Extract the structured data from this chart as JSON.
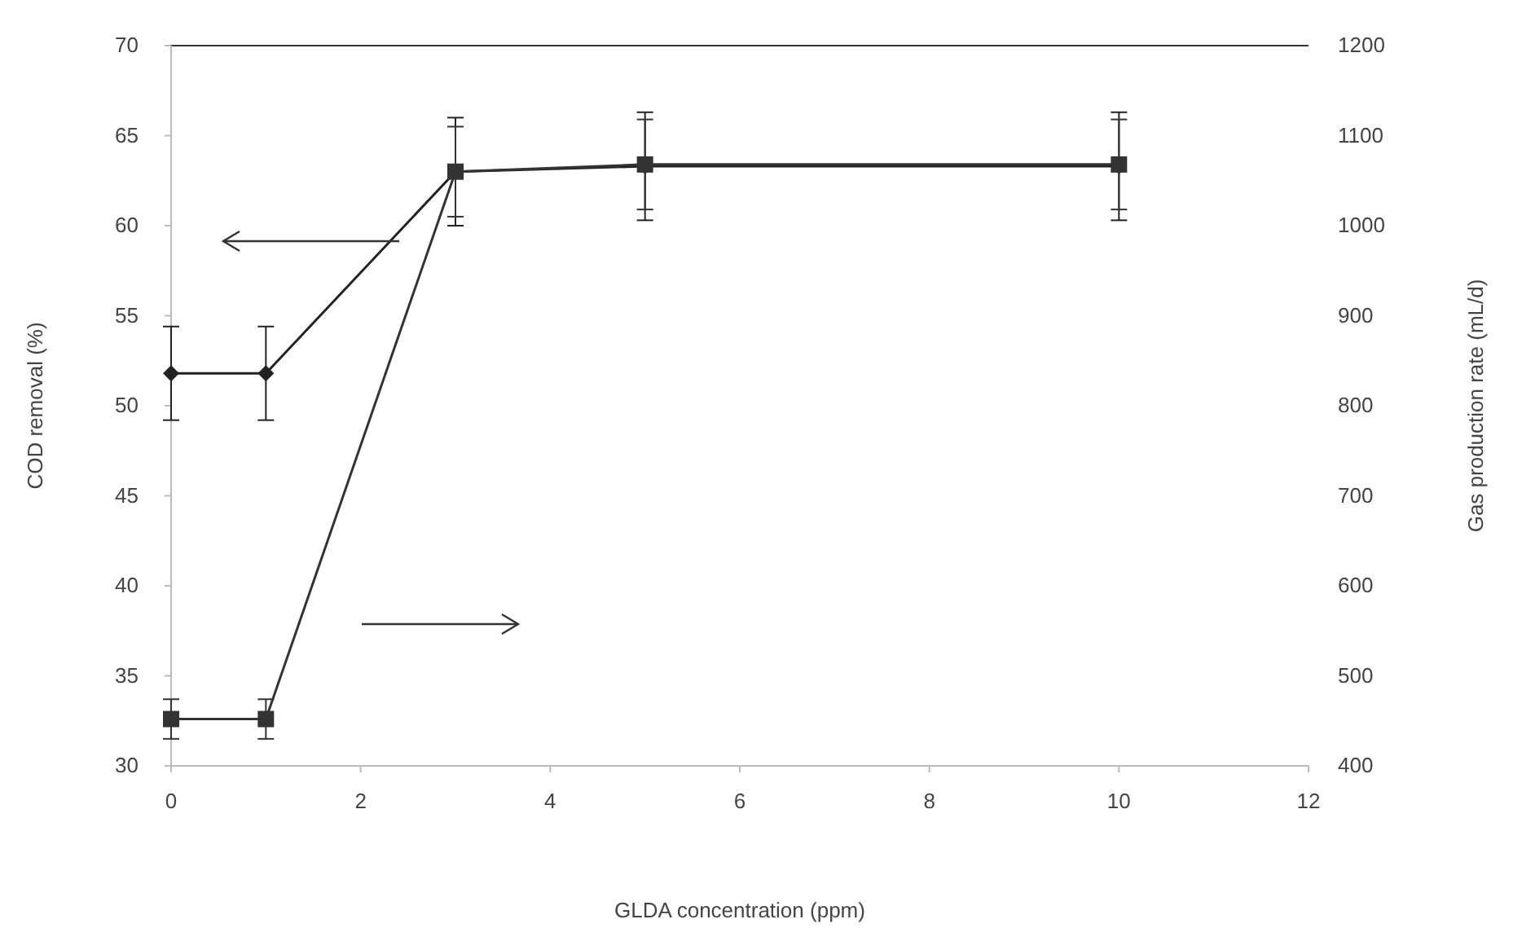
{
  "chart_data": {
    "type": "line",
    "xlabel": "GLDA concentration (ppm)",
    "ylabel": "COD removal (%)",
    "y2label": "Gas production rate (mL/d)",
    "x": [
      0,
      1,
      3,
      5,
      10
    ],
    "xlim": [
      0,
      12
    ],
    "xticks": [
      0,
      2,
      4,
      6,
      8,
      10,
      12
    ],
    "ylim": [
      30,
      70
    ],
    "yticks": [
      30,
      35,
      40,
      45,
      50,
      55,
      60,
      65,
      70
    ],
    "y2lim": [
      400,
      1200
    ],
    "y2ticks": [
      400,
      500,
      600,
      700,
      800,
      900,
      1000,
      1100,
      1200
    ],
    "grid": false,
    "series": [
      {
        "color": "#222222",
        "marker": "diamond",
        "line_style": "solid",
        "values": [
          51.8,
          51.8,
          63,
          63.3,
          63.3
        ],
        "errors": [
          2.6,
          2.6,
          3,
          3,
          3
        ]
      },
      {
        "color": "#333333",
        "marker": "square",
        "line_style": "solid",
        "axis": "y2",
        "values": [
          452,
          452,
          1060,
          1068,
          1068
        ],
        "errors": [
          22,
          22,
          50,
          50,
          50
        ]
      }
    ]
  }
}
